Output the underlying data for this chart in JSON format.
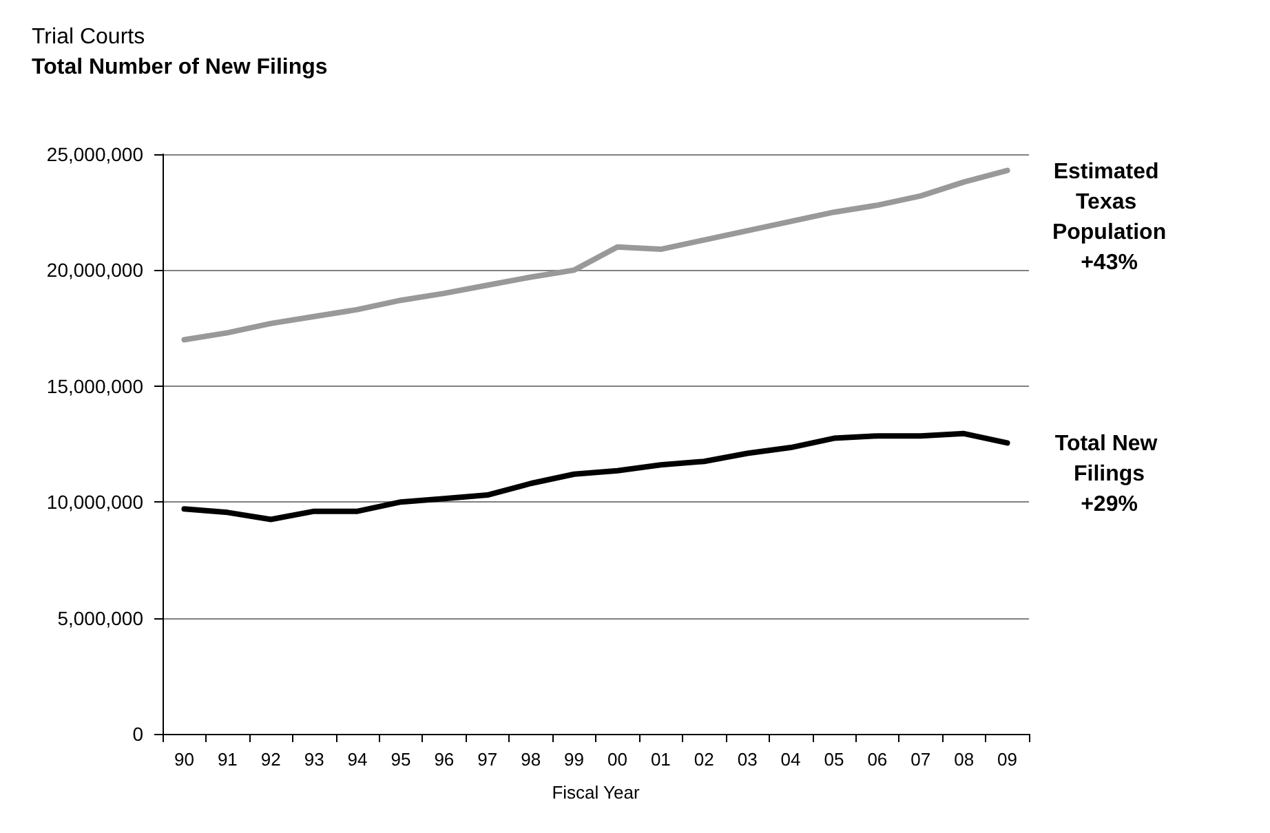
{
  "chart_data": {
    "type": "line",
    "title": "Trial Courts",
    "subtitle": "Total Number of New Filings",
    "xlabel": "Fiscal Year",
    "categories": [
      "90",
      "91",
      "92",
      "93",
      "94",
      "95",
      "96",
      "97",
      "98",
      "99",
      "00",
      "01",
      "02",
      "03",
      "04",
      "05",
      "06",
      "07",
      "08",
      "09"
    ],
    "series": [
      {
        "name": "Estimated Texas Population",
        "color": "#999999",
        "values": [
          17000000,
          17300000,
          17700000,
          18000000,
          18300000,
          18700000,
          19000000,
          19350000,
          19700000,
          20000000,
          21000000,
          20900000,
          21300000,
          21700000,
          22100000,
          22500000,
          22800000,
          23200000,
          23800000,
          24300000
        ]
      },
      {
        "name": "Total New Filings",
        "color": "#000000",
        "values": [
          9700000,
          9550000,
          9250000,
          9600000,
          9600000,
          10000000,
          10150000,
          10300000,
          10800000,
          11200000,
          11350000,
          11600000,
          11750000,
          12100000,
          12350000,
          12750000,
          12850000,
          12850000,
          12950000,
          12550000
        ]
      }
    ],
    "annotations": [
      "+43%",
      "+29%"
    ],
    "ylim": [
      0,
      25000000
    ],
    "yticks": [
      0,
      {
        "value": 5000000,
        "label": "5,000,000"
      },
      {
        "value": 10000000,
        "label": "10,000,000"
      },
      {
        "value": 15000000,
        "label": "15,000,000"
      },
      {
        "value": 20000000,
        "label": "20,000,000"
      },
      {
        "value": 25000000,
        "label": "25,000,000"
      }
    ],
    "grid": "y",
    "legend": false,
    "marker": "none",
    "line_style": "solid"
  }
}
